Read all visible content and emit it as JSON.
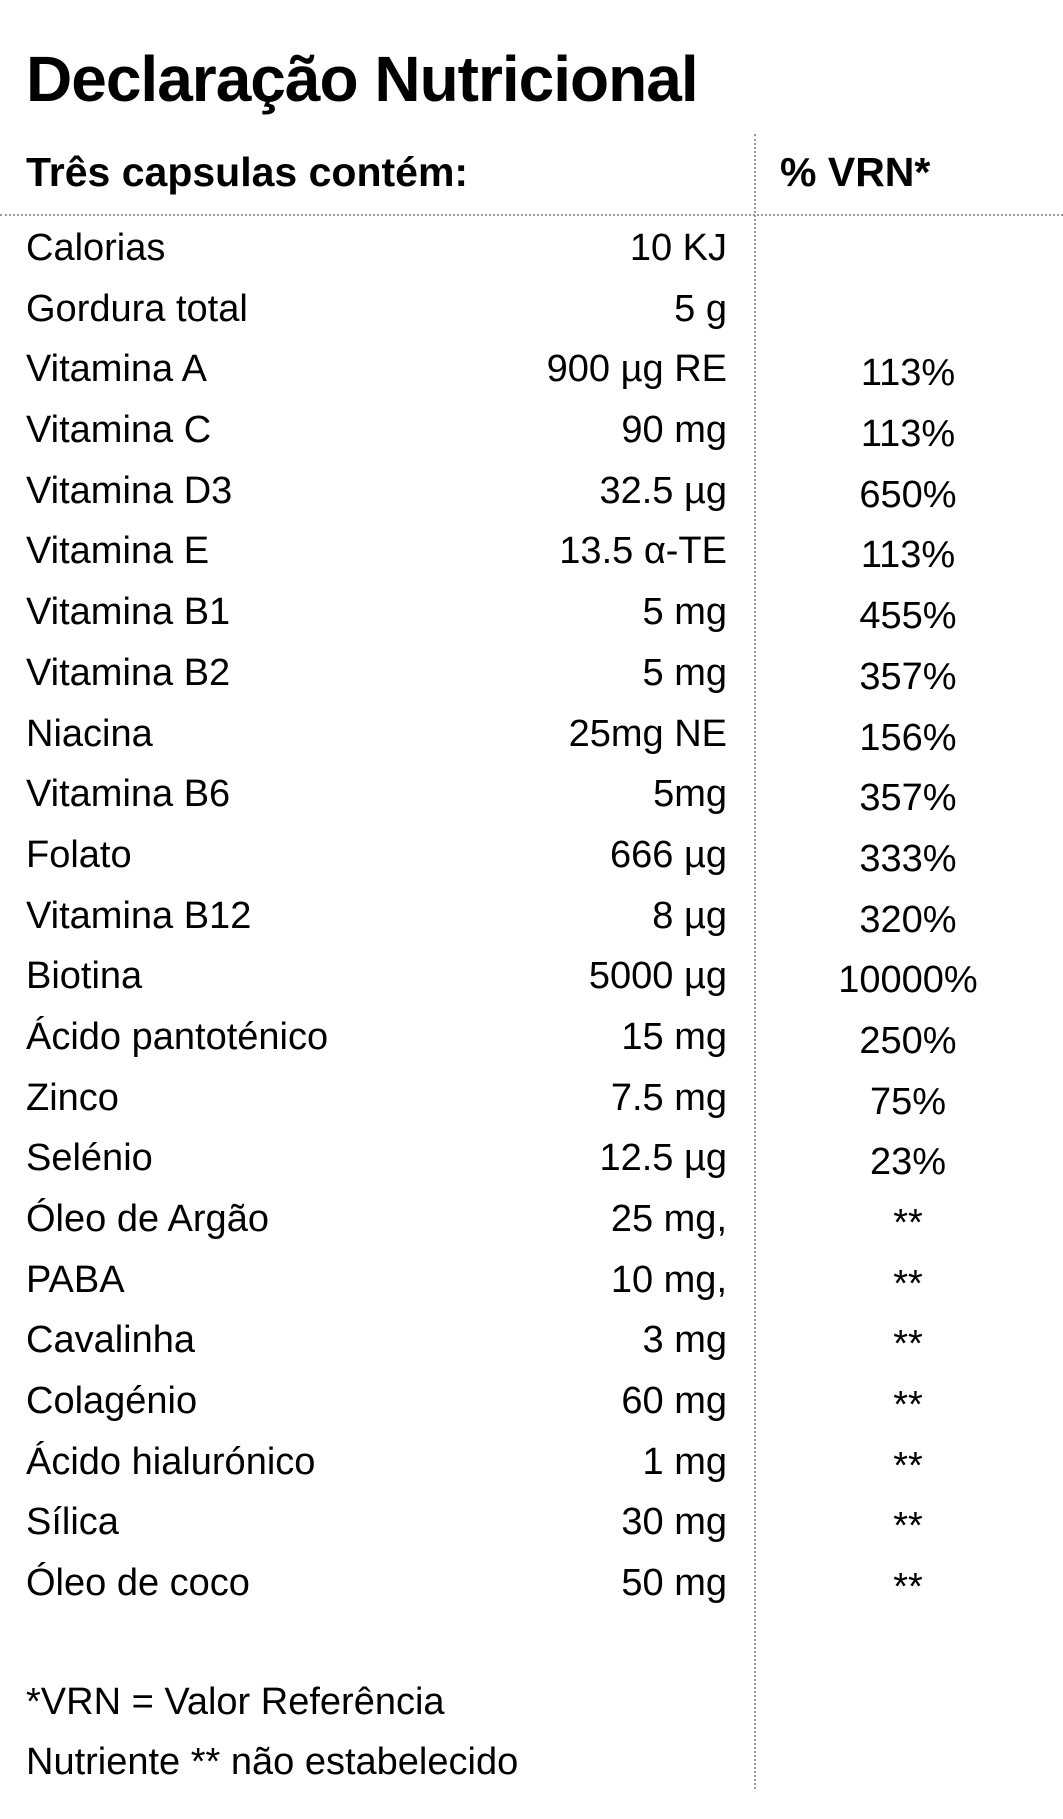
{
  "title": "Declaração Nutricional",
  "header": {
    "left": "Três capsulas contém:",
    "right": "% VRN*"
  },
  "rows": [
    {
      "name": "Calorias",
      "amount": "10 KJ",
      "vrn": ""
    },
    {
      "name": "Gordura total",
      "amount": "5 g",
      "vrn": ""
    },
    {
      "name": "Vitamina A",
      "amount": "900 µg RE",
      "vrn": "113%"
    },
    {
      "name": "Vitamina C",
      "amount": "90 mg",
      "vrn": "113%"
    },
    {
      "name": "Vitamina D3",
      "amount": "32.5 µg",
      "vrn": "650%"
    },
    {
      "name": "Vitamina E",
      "amount": "13.5 α-TE",
      "vrn": "113%"
    },
    {
      "name": "Vitamina B1",
      "amount": "5 mg",
      "vrn": "455%"
    },
    {
      "name": "Vitamina B2",
      "amount": "5 mg",
      "vrn": "357%"
    },
    {
      "name": "Niacina",
      "amount": "25mg NE",
      "vrn": "156%"
    },
    {
      "name": "Vitamina B6",
      "amount": "5mg",
      "vrn": "357%"
    },
    {
      "name": "Folato",
      "amount": "666 µg",
      "vrn": "333%"
    },
    {
      "name": "Vitamina B12",
      "amount": "8 µg",
      "vrn": "320%"
    },
    {
      "name": "Biotina",
      "amount": "5000 µg",
      "vrn": "10000%"
    },
    {
      "name": "Ácido pantoténico",
      "amount": "15 mg",
      "vrn": "250%"
    },
    {
      "name": "Zinco",
      "amount": "7.5 mg",
      "vrn": "75%"
    },
    {
      "name": "Selénio",
      "amount": "12.5 µg",
      "vrn": "23%"
    },
    {
      "name": "Óleo de Argão",
      "amount": "25 mg,",
      "vrn": "**"
    },
    {
      "name": "PABA",
      "amount": "10 mg,",
      "vrn": "**"
    },
    {
      "name": "Cavalinha",
      "amount": "3 mg",
      "vrn": "**"
    },
    {
      "name": "Colagénio",
      "amount": "60 mg",
      "vrn": "**"
    },
    {
      "name": "Ácido hialurónico",
      "amount": "1 mg",
      "vrn": "**"
    },
    {
      "name": "Sílica",
      "amount": "30 mg",
      "vrn": "**"
    },
    {
      "name": "Óleo de coco",
      "amount": "50 mg",
      "vrn": "**"
    }
  ],
  "footnotes": [
    "*VRN = Valor Referência",
    "Nutriente ** não estabelecido"
  ]
}
